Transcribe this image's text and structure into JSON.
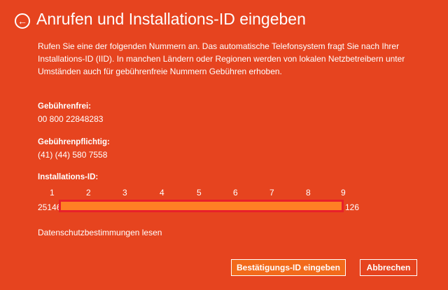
{
  "header": {
    "back_icon": "arrow-left-circle-icon",
    "title": "Anrufen und Installations-ID eingeben"
  },
  "description": [
    "Rufen Sie eine der folgenden Nummern an. Das automatische Telefonsystem fragt Sie nach Ihrer",
    "Installations-ID (IID). In manchen Ländern oder Regionen werden von lokalen Netzbetreibern unter",
    "Umständen auch für gebührenfreie Nummern Gebühren erhoben."
  ],
  "tollfree": {
    "label": "Gebührenfrei:",
    "value": "00 800 22848283"
  },
  "toll": {
    "label": "Gebührenpflichtig:",
    "value": "(41) (44) 580 7558"
  },
  "installation_id": {
    "label": "Installations-ID:",
    "groups": [
      "1",
      "2",
      "3",
      "4",
      "5",
      "6",
      "7",
      "8",
      "9"
    ],
    "start": "25146",
    "end": "126",
    "redaction_color": "#ff7f24"
  },
  "privacy_link": "Datenschutzbestimmungen lesen",
  "buttons": {
    "confirm": "Bestätigungs-ID eingeben",
    "cancel": "Abbrechen"
  },
  "colors": {
    "background": "#e6441f",
    "primary_button": "#f26a1b"
  }
}
